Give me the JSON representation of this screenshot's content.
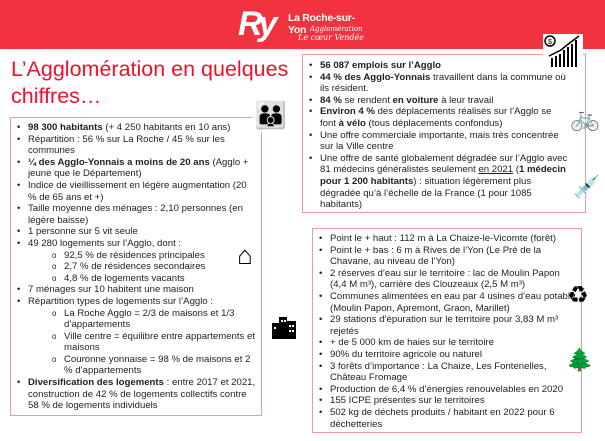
{
  "header": {
    "logo_mark": "Ry",
    "logo_name": "La Roche-sur-Yon",
    "logo_sub1": "Agglomération",
    "logo_sub2": "Le cœur Vendée",
    "color": "#f0333f"
  },
  "title": "L’Agglomération en quelques chiffres…",
  "population": {
    "items": [
      {
        "level": 1,
        "segs": [
          {
            "t": "98 300 habitants",
            "b": true
          },
          {
            "t": " (+ 4 250 habitants en 10 ans)"
          }
        ]
      },
      {
        "level": 1,
        "segs": [
          {
            "t": "Répartition : 56 % sur La Roche / 45 % sur les communes"
          }
        ]
      },
      {
        "level": 1,
        "segs": [
          {
            "t": "¼ des Agglo-Yonnais a moins de 20 ans",
            "b": true
          },
          {
            "t": " (Agglo + jeune que le Département)"
          }
        ]
      },
      {
        "level": 1,
        "segs": [
          {
            "t": "Indice de vieillissement en légère augmentation (20 % de 65 ans et +)"
          }
        ]
      },
      {
        "level": 1,
        "segs": [
          {
            "t": "Taille moyenne des ménages : 2,10 personnes (en légère baisse)"
          }
        ]
      },
      {
        "level": 1,
        "segs": [
          {
            "t": "1 personne sur 5 vit seule"
          }
        ]
      },
      {
        "level": 1,
        "segs": [
          {
            "t": "49 280 logements sur l’Agglo, dont :"
          }
        ]
      },
      {
        "level": 2,
        "segs": [
          {
            "t": "92,5 % de résidences principales"
          }
        ]
      },
      {
        "level": 2,
        "segs": [
          {
            "t": "2,7 % de résidences secondaires"
          }
        ]
      },
      {
        "level": 2,
        "segs": [
          {
            "t": "4,8 % de logements vacants"
          }
        ]
      },
      {
        "level": 1,
        "segs": [
          {
            "t": "7 ménages sur 10 habitent une maison"
          }
        ]
      },
      {
        "level": 1,
        "segs": [
          {
            "t": "Répartition types de logements sur l’Agglo :"
          }
        ]
      },
      {
        "level": 2,
        "segs": [
          {
            "t": "La Roche Agglo = 2/3 de maisons et 1/3 d’appartements"
          }
        ]
      },
      {
        "level": 2,
        "segs": [
          {
            "t": "Ville centre = équilibre entre appartements et maisons"
          }
        ]
      },
      {
        "level": 2,
        "segs": [
          {
            "t": "Couronne yonnaise = 98 % de maisons et 2 % d’appartements"
          }
        ]
      },
      {
        "level": 1,
        "segs": [
          {
            "t": "Diversification des logements",
            "b": true
          },
          {
            "t": " : entre 2017 et 2021, construction de 42 % de logements collectifs contre 58 % de logements individuels"
          }
        ]
      }
    ]
  },
  "economy": {
    "items": [
      {
        "level": 1,
        "segs": [
          {
            "t": "56 087 emplois sur l’Agglo",
            "b": true
          }
        ]
      },
      {
        "level": 1,
        "segs": [
          {
            "t": "44 % des Agglo-Yonnais",
            "b": true
          },
          {
            "t": " travaillent dans la commune où ils résident."
          }
        ]
      },
      {
        "level": 1,
        "segs": [
          {
            "t": "84 %",
            "b": true
          },
          {
            "t": " se rendent "
          },
          {
            "t": "en voiture",
            "b": true
          },
          {
            "t": " à leur travail"
          }
        ]
      },
      {
        "level": 1,
        "segs": [
          {
            "t": "Environ 4 %",
            "b": true
          },
          {
            "t": " des déplacements réalisés sur l’Agglo se font "
          },
          {
            "t": "à vélo",
            "b": true
          },
          {
            "t": " (tous déplacements confondus)"
          }
        ]
      },
      {
        "level": 1,
        "segs": [
          {
            "t": "Une offre commerciale importante, mais très concentrée sur la Ville centre"
          }
        ]
      },
      {
        "level": 1,
        "segs": [
          {
            "t": "Une offre de santé globalement dégradée sur l’Agglo avec 81 médecins généralistes seulement "
          },
          {
            "t": "en 2021",
            "u": true
          },
          {
            "t": " ("
          },
          {
            "t": "1 médecin pour 1 200 habitants",
            "b": true
          },
          {
            "t": ") : situation légèrement plus dégradée qu’à l’échelle de la France (1 pour 1085 habitants)"
          }
        ]
      }
    ]
  },
  "environment": {
    "items": [
      {
        "level": 1,
        "segs": [
          {
            "t": "Point le + haut : 112 m à La Chaize-le-Vicomte (forêt)"
          }
        ]
      },
      {
        "level": 1,
        "segs": [
          {
            "t": "Point le + bas : 6 m à Rives de l’Yon (Le Pré de la Chavane, au niveau de l’Yon)"
          }
        ]
      },
      {
        "level": 1,
        "segs": [
          {
            "t": "2 réserves d’eau sur le territoire : lac de Moulin Papon (4,4 M m³), carrière des Clouzeaux (2,5 M m³)"
          }
        ]
      },
      {
        "level": 1,
        "segs": [
          {
            "t": "Communes alimentées en eau par 4 usines d’eau potable (Moulin Papon, Apremont, Graon, Marillet)"
          }
        ]
      },
      {
        "level": 1,
        "segs": [
          {
            "t": "29 stations d’épuration sur le territoire pour 3,83 M m³ rejetés"
          }
        ]
      },
      {
        "level": 1,
        "segs": [
          {
            "t": "+ de 5 000 km de haies sur le territoire"
          }
        ]
      },
      {
        "level": 1,
        "segs": [
          {
            "t": "90% du territoire agricole ou naturel"
          }
        ]
      },
      {
        "level": 1,
        "segs": [
          {
            "t": "3 forêts d’importance : La Chaize, Les Fontenelles, Château Fromage"
          }
        ]
      },
      {
        "level": 1,
        "segs": [
          {
            "t": "Production de 6,4 % d’énergies renouvelables en 2020"
          }
        ]
      },
      {
        "level": 1,
        "segs": [
          {
            "t": "155 ICPE présentes sur le territoires"
          }
        ]
      },
      {
        "level": 1,
        "segs": [
          {
            "t": "502 kg de déchets produits / habitant en 2022 pour 6 déchetteries"
          }
        ]
      }
    ]
  },
  "icons": {
    "family": "family-icon",
    "house": "house-icon",
    "buildings": "buildings-icon",
    "growth_chart": "growth-chart-icon",
    "bicycle": "bicycle-icon",
    "syringe": "syringe-icon",
    "recycle": "recycle-icon",
    "trees": "trees-icon"
  }
}
